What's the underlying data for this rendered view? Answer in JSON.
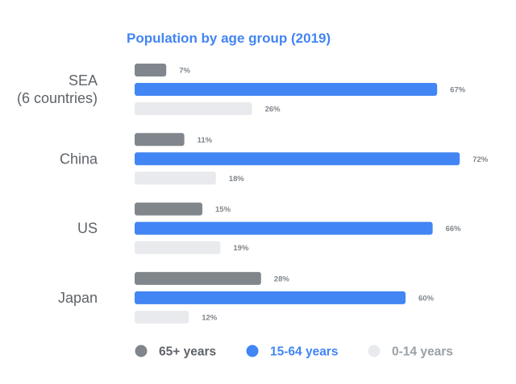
{
  "chart_data": {
    "type": "bar",
    "orientation": "horizontal",
    "title": "Population by age group (2019)",
    "categories": [
      "SEA\n(6 countries)",
      "China",
      "US",
      "Japan"
    ],
    "series": [
      {
        "name": "65+ years",
        "values": [
          7,
          11,
          15,
          28
        ],
        "labels": [
          "7%",
          "11%",
          "15%",
          "28%"
        ],
        "color": "#80868b"
      },
      {
        "name": "15-64 years",
        "values": [
          67,
          72,
          66,
          60
        ],
        "labels": [
          "67%",
          "72%",
          "66%",
          "60%"
        ],
        "color": "#4285f4"
      },
      {
        "name": "0-14 years",
        "values": [
          26,
          18,
          19,
          12
        ],
        "labels": [
          "26%",
          "18%",
          "19%",
          "12%"
        ],
        "color": "#e8eaed"
      }
    ],
    "xlim": [
      0,
      100
    ],
    "grid": false,
    "legend_position": "bottom"
  },
  "colors": {
    "title": "#4285f4",
    "category_text": "#5f6368",
    "value_text": "#80868b",
    "legend_text": [
      "#5f6368",
      "#4285f4",
      "#9aa0a6"
    ]
  }
}
